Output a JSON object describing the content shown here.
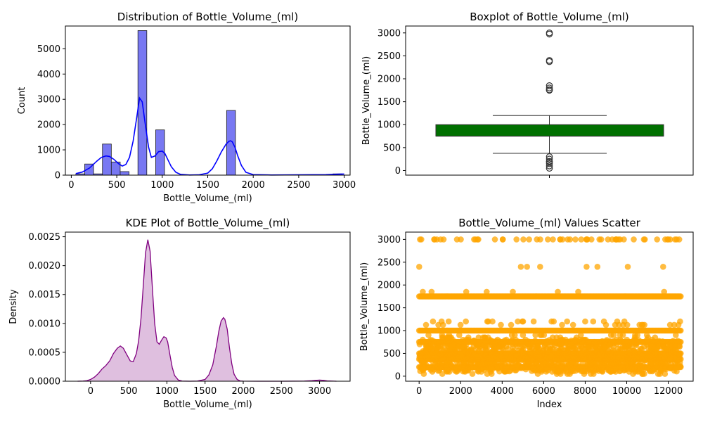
{
  "colors": {
    "hist_fill": "#7878f2",
    "hist_stroke": "#1f1f1f",
    "kde_line": "#0000ff",
    "box_fill": "#007000",
    "kde2_line": "#800080",
    "kde2_fill": "#dcb8dc",
    "scatter": "#ffa500"
  },
  "chart_data": [
    {
      "type": "bar",
      "title": "Distribution of Bottle_Volume_(ml)",
      "xlabel": "Bottle_Volume_(ml)",
      "ylabel": "Count",
      "xlim": [
        -65,
        3065
      ],
      "ylim": [
        0,
        5900
      ],
      "xticks": [
        0,
        500,
        1000,
        1500,
        2000,
        2500,
        3000
      ],
      "yticks": [
        0,
        1000,
        2000,
        3000,
        4000,
        5000
      ],
      "bin_width": 97.5,
      "bins": [
        {
          "x0": 50,
          "count": 50
        },
        {
          "x0": 147.5,
          "count": 440
        },
        {
          "x0": 245,
          "count": 50
        },
        {
          "x0": 342.5,
          "count": 1230
        },
        {
          "x0": 440,
          "count": 520
        },
        {
          "x0": 537.5,
          "count": 140
        },
        {
          "x0": 732.5,
          "count": 5720
        },
        {
          "x0": 927.5,
          "count": 1790
        },
        {
          "x0": 1707.5,
          "count": 2560
        },
        {
          "x0": 2877.5,
          "count": 50
        }
      ],
      "kde_curve": {
        "x": [
          50,
          120,
          200,
          280,
          330,
          380,
          420,
          470,
          520,
          560,
          600,
          640,
          680,
          720,
          750,
          780,
          810,
          850,
          880,
          920,
          960,
          1000,
          1030,
          1060,
          1100,
          1150,
          1200,
          1300,
          1400,
          1500,
          1550,
          1600,
          1650,
          1700,
          1730,
          1750,
          1770,
          1800,
          1830,
          1870,
          1920,
          2000,
          2200,
          2500,
          2800,
          2950,
          3000
        ],
        "y": [
          60,
          120,
          280,
          550,
          700,
          760,
          740,
          620,
          450,
          360,
          420,
          700,
          1350,
          2300,
          3050,
          2900,
          2100,
          1100,
          700,
          760,
          930,
          950,
          850,
          620,
          330,
          110,
          30,
          5,
          10,
          80,
          250,
          560,
          920,
          1220,
          1330,
          1360,
          1320,
          1100,
          760,
          380,
          110,
          20,
          5,
          10,
          20,
          40,
          45
        ]
      }
    },
    {
      "type": "box",
      "title": "Boxplot of Bottle_Volume_(ml)",
      "ylabel": "Bottle_Volume_(ml)",
      "ylim": [
        -100,
        3150
      ],
      "yticks": [
        0,
        500,
        1000,
        1500,
        2000,
        2500,
        3000
      ],
      "q1": 750,
      "median": 750,
      "q3": 1000,
      "whisker_low": 375,
      "whisker_high": 1200,
      "outliers": [
        50,
        100,
        150,
        187,
        200,
        250,
        300,
        1750,
        1760,
        1800,
        1850,
        2375,
        2400,
        2975,
        3000
      ]
    },
    {
      "type": "area",
      "title": "KDE Plot of Bottle_Volume_(ml)",
      "xlabel": "Bottle_Volume_(ml)",
      "ylabel": "Density",
      "xlim": [
        -330,
        3400
      ],
      "ylim": [
        0,
        0.00258
      ],
      "xticks": [
        0,
        500,
        1000,
        1500,
        2000,
        2500,
        3000
      ],
      "yticks": [
        0,
        0.0005,
        0.001,
        0.0015,
        0.002,
        0.0025
      ],
      "ytick_labels": [
        "0.0000",
        "0.0005",
        "0.0010",
        "0.0015",
        "0.0020",
        "0.0025"
      ],
      "x": [
        -170,
        -100,
        -50,
        0,
        50,
        100,
        150,
        200,
        250,
        300,
        350,
        390,
        430,
        470,
        520,
        560,
        600,
        630,
        660,
        690,
        720,
        750,
        780,
        810,
        840,
        870,
        900,
        930,
        960,
        990,
        1010,
        1040,
        1070,
        1100,
        1150,
        1200,
        1300,
        1400,
        1500,
        1550,
        1600,
        1650,
        1680,
        1710,
        1740,
        1760,
        1790,
        1820,
        1850,
        1880,
        1920,
        1960,
        2000,
        2200,
        2500,
        2800,
        2900,
        2950,
        3000,
        3050,
        3100,
        3220
      ],
      "y": [
        0,
        2e-06,
        8e-06,
        3e-05,
        7e-05,
        0.00013,
        0.00021,
        0.00027,
        0.00035,
        0.00048,
        0.00057,
        0.00061,
        0.00057,
        0.00047,
        0.00035,
        0.00034,
        0.00048,
        0.0007,
        0.00108,
        0.00165,
        0.00222,
        0.00245,
        0.00225,
        0.0016,
        0.001,
        0.00068,
        0.00064,
        0.00071,
        0.00077,
        0.00075,
        0.00068,
        0.00045,
        0.00024,
        0.0001,
        2e-05,
        2e-06,
        0,
        2e-06,
        3e-05,
        0.00011,
        0.00028,
        0.00062,
        0.00086,
        0.00104,
        0.0011,
        0.00107,
        0.0009,
        0.00058,
        0.0003,
        0.00012,
        3e-05,
        5e-06,
        1e-06,
        0,
        0,
        2e-06,
        8e-06,
        1.5e-05,
        2e-05,
        1.5e-05,
        6e-06,
        0
      ]
    },
    {
      "type": "scatter",
      "title": "Bottle_Volume_(ml) Values Scatter",
      "xlabel": "Index",
      "ylabel": "Bottle_Volume_(ml)",
      "xlim": [
        -650,
        13200
      ],
      "ylim": [
        -110,
        3160
      ],
      "xticks": [
        0,
        2000,
        4000,
        6000,
        8000,
        10000,
        12000
      ],
      "yticks": [
        0,
        500,
        1000,
        1500,
        2000,
        2500,
        3000
      ],
      "index_range": [
        0,
        12600
      ],
      "dense_levels": [
        1750,
        1000,
        750,
        500,
        375,
        200
      ],
      "sparse_levels": [
        50,
        100,
        150,
        187,
        250,
        300,
        600,
        650,
        700,
        800,
        850,
        900,
        1125,
        1200,
        1850,
        2400,
        3000
      ]
    }
  ]
}
